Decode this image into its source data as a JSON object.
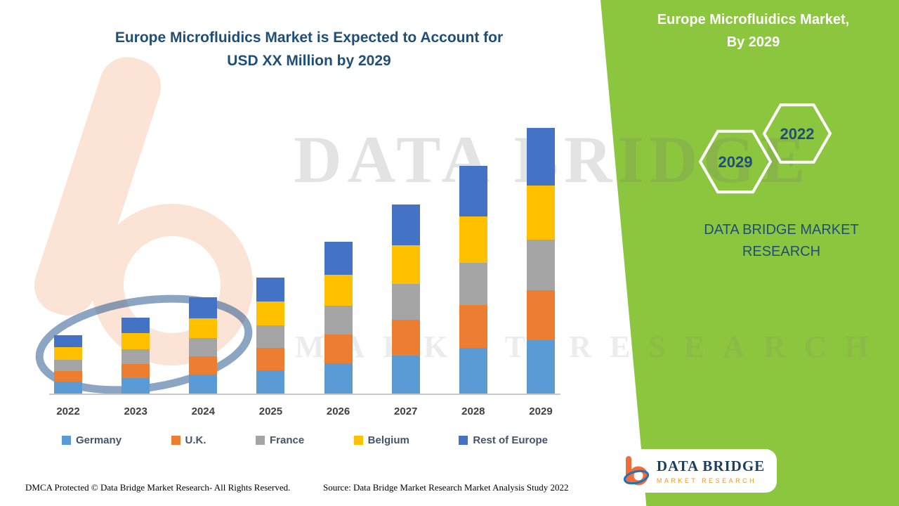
{
  "colors": {
    "green": "#8CC63E",
    "title_blue": "#1F4E79",
    "orange": "#F7941D"
  },
  "header": {
    "title_line1": "Europe Microfluidics Market is Expected to Account for",
    "title_line2": "USD XX Million by 2029"
  },
  "sidebar": {
    "title_line1": "Europe Microfluidics Market,",
    "title_line2": "By 2029",
    "hex_back_label": "2029",
    "hex_front_label": "2022",
    "brand_line1": "DATA BRIDGE MARKET",
    "brand_line2": "RESEARCH"
  },
  "watermark": {
    "line1": "DATA BRIDGE",
    "line2": "MARKET RESEARCH"
  },
  "chart_data": {
    "type": "bar",
    "stacked": true,
    "title": "Europe Microfluidics Market is Expected to Account for USD XX Million by 2029",
    "categories": [
      "2022",
      "2023",
      "2024",
      "2025",
      "2026",
      "2027",
      "2028",
      "2029"
    ],
    "series": [
      {
        "name": "Germany",
        "color": "#5B9BD5",
        "values": [
          2.0,
          2.6,
          3.3,
          4.0,
          5.2,
          6.5,
          7.8,
          9.1
        ]
      },
      {
        "name": "U.K.",
        "color": "#ED7D31",
        "values": [
          1.9,
          2.5,
          3.1,
          3.8,
          4.9,
          6.1,
          7.3,
          8.6
        ]
      },
      {
        "name": "France",
        "color": "#A5A5A5",
        "values": [
          1.9,
          2.5,
          3.1,
          3.8,
          4.9,
          6.1,
          7.3,
          8.6
        ]
      },
      {
        "name": "Belgium",
        "color": "#FFC000",
        "values": [
          2.1,
          2.7,
          3.4,
          4.1,
          5.3,
          6.6,
          7.9,
          9.2
        ]
      },
      {
        "name": "Rest of Europe",
        "color": "#4472C4",
        "values": [
          2.1,
          2.7,
          3.6,
          4.1,
          5.6,
          7.0,
          8.6,
          9.9
        ]
      }
    ],
    "xlabel": "",
    "ylabel": "",
    "value_axis_visible": false,
    "value_labels_shown": false,
    "grid": false,
    "legend_position": "bottom"
  },
  "footer": {
    "dmca": "DMCA Protected © Data Bridge Market Research- All Rights Reserved.",
    "source": "Source: Data Bridge Market Research Market Analysis Study 2022"
  },
  "logo": {
    "name_line1": "DATA BRIDGE",
    "name_line2": "MARKET RESEARCH"
  }
}
